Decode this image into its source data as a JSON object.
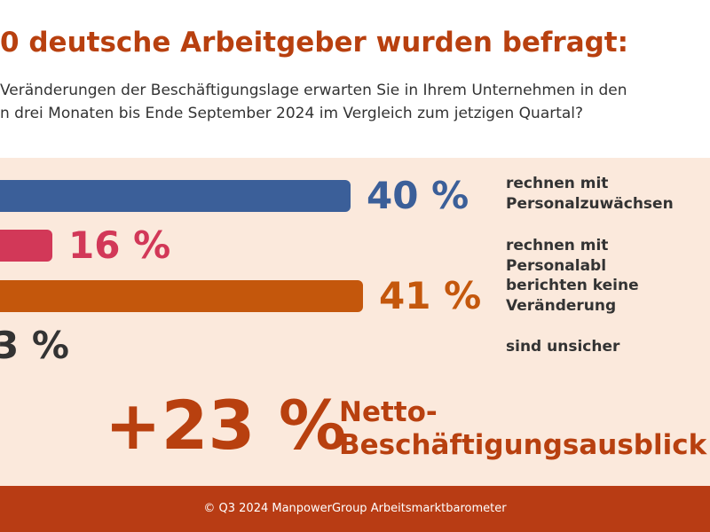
{
  "chart_data": {
    "type": "bar",
    "orientation": "horizontal",
    "title": "0 deutsche Arbeitgeber wurden befragt:",
    "subtitle": [
      "Veränderungen der Beschäftigungslage erwarten Sie in Ihrem Unternehmen in den",
      "n drei Monaten bis Ende September 2024 im Vergleich zum jetzigen Quartal?"
    ],
    "categories": [
      "rechnen mit Personalzuwächsen",
      "rechnen mit Personalabl",
      "berichten keine Veränderung",
      "sind unsicher"
    ],
    "values": [
      40,
      16,
      41,
      3
    ],
    "value_labels": [
      "40 %",
      "16 %",
      "41 %",
      "3 %"
    ],
    "colors": [
      "#3b5f99",
      "#d23858",
      "#c4570c",
      "#333333"
    ],
    "net": {
      "value": 23,
      "label": "+23 %",
      "text": "Netto-Beschäftigungsausblick"
    },
    "footer": "© Q3 2024 ManpowerGroup Arbeitsmarktbarometer"
  }
}
